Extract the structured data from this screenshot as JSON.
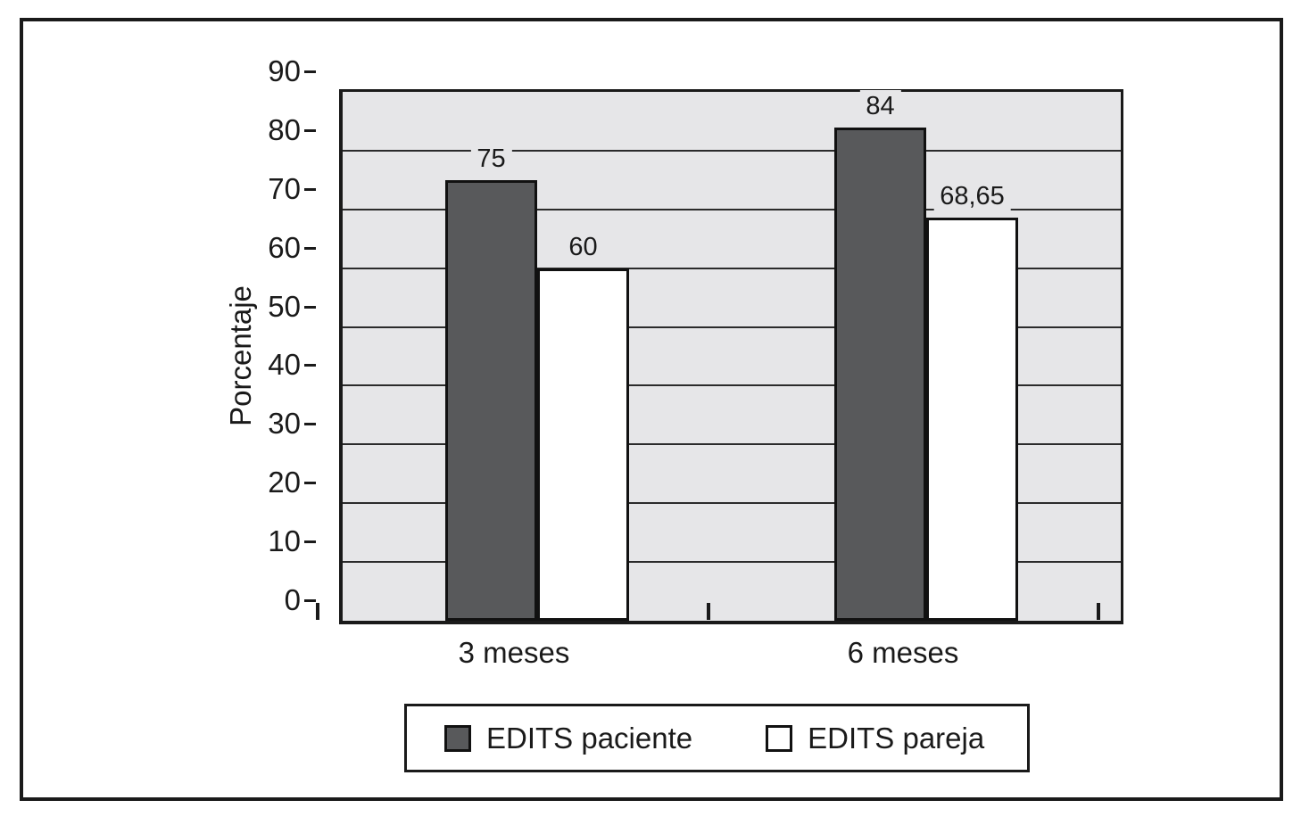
{
  "chart_data": {
    "type": "bar",
    "categories": [
      "3 meses",
      "6 meses"
    ],
    "series": [
      {
        "name": "EDITS paciente",
        "values": [
          75,
          84
        ],
        "value_labels": [
          "75",
          "84"
        ],
        "color": "#58595b"
      },
      {
        "name": "EDITS pareja",
        "values": [
          60,
          68.65
        ],
        "value_labels": [
          "60",
          "68,65"
        ],
        "color": "#ffffff"
      }
    ],
    "title": "",
    "xlabel": "",
    "ylabel": "Porcentaje",
    "ylim": [
      0,
      90
    ],
    "yticks": [
      0,
      10,
      20,
      30,
      40,
      50,
      60,
      70,
      80,
      90
    ],
    "grid": true,
    "legend_position": "bottom",
    "plot_background": "#e6e6e8",
    "decimal_separator": ","
  },
  "colors": {
    "axis": "#1a1a1a",
    "gridline": "#2b2b2b",
    "bar_border": "#111111",
    "dark_bar": "#58595b",
    "light_bar": "#ffffff"
  }
}
